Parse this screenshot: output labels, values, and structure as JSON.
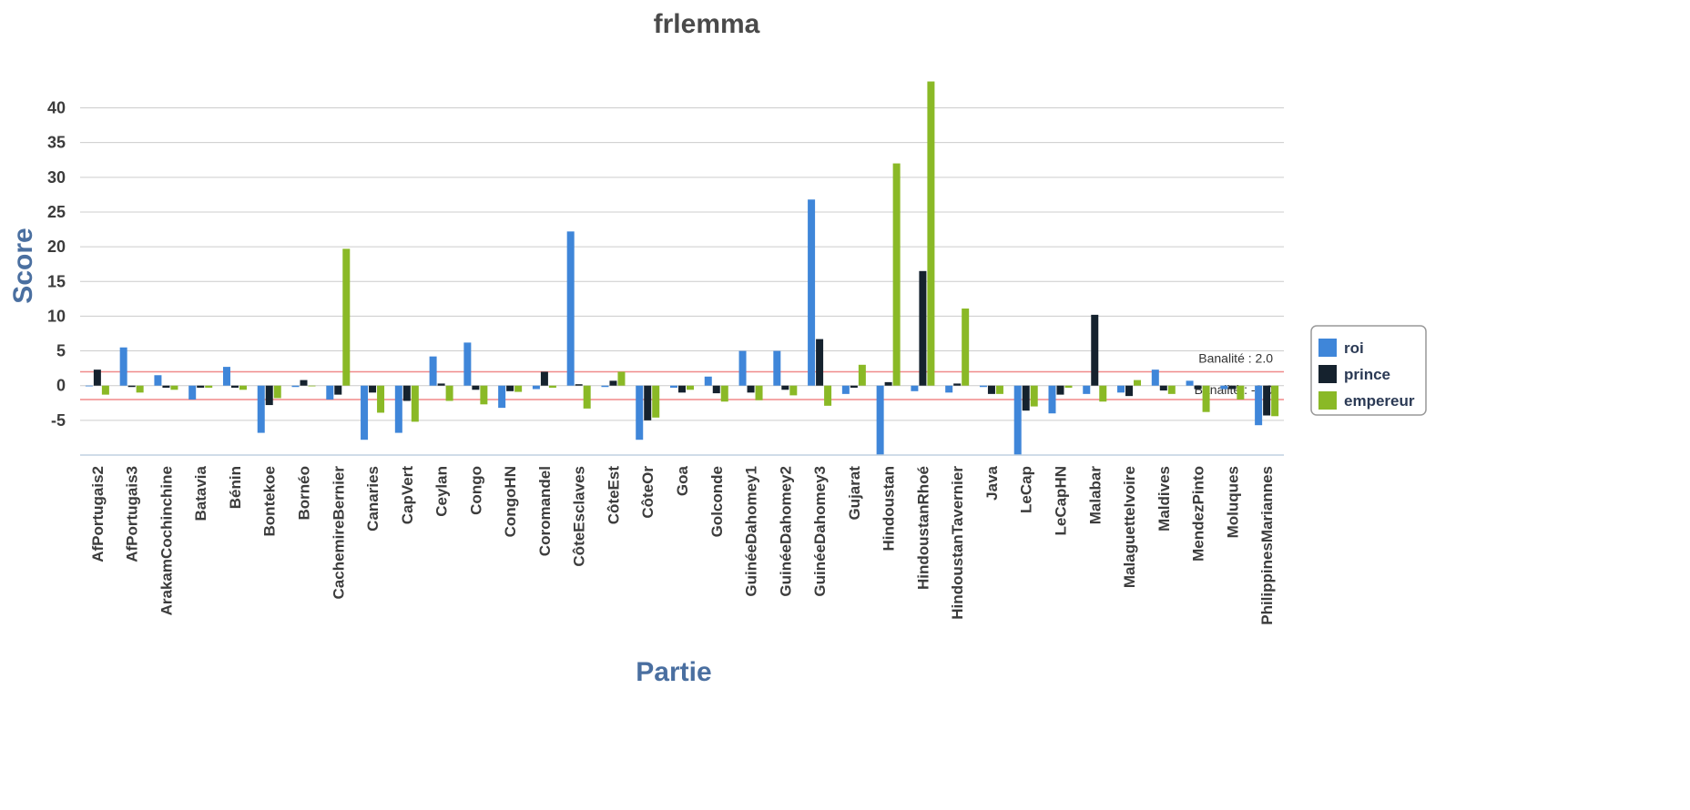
{
  "chart_data": {
    "type": "bar",
    "title": "frlemma",
    "xlabel": "Partie",
    "ylabel": "Score",
    "ylim": [
      -10,
      44
    ],
    "yticks": [
      -5,
      0,
      5,
      10,
      15,
      20,
      25,
      30,
      35,
      40
    ],
    "grid": true,
    "legend_position": "right",
    "categories": [
      "AfPortugais2",
      "AfPortugais3",
      "ArakamCochinchine",
      "Batavia",
      "Bénin",
      "Bontekoe",
      "Bornéo",
      "CachemireBernier",
      "Canaries",
      "CapVert",
      "Ceylan",
      "Congo",
      "CongoHN",
      "Coromandel",
      "CôteEsclaves",
      "CôteEst",
      "CôteOr",
      "Goa",
      "Golconde",
      "GuinéeDahomey1",
      "GuinéeDahomey2",
      "GuinéeDahomey3",
      "Gujarat",
      "Hindoustan",
      "HindoustanRhoé",
      "HindoustanTavernier",
      "Java",
      "LeCap",
      "LeCapHN",
      "Malabar",
      "MalaguetteIvoire",
      "Maldives",
      "MendezPinto",
      "Moluques",
      "PhilippinesMariannes"
    ],
    "series": [
      {
        "name": "roi",
        "color": "#3f86d9",
        "values": [
          0.0,
          5.5,
          1.5,
          -2.0,
          2.7,
          -6.8,
          -0.2,
          -2.0,
          -7.8,
          -6.8,
          4.2,
          6.2,
          -3.2,
          -0.5,
          22.2,
          -0.2,
          -7.8,
          -0.3,
          1.3,
          5.0,
          5.0,
          26.8,
          -1.2,
          -10.0,
          -0.8,
          -1.0,
          -0.2,
          -10.0,
          -4.0,
          -1.2,
          -1.0,
          2.3,
          0.7,
          -0.5,
          -5.7
        ]
      },
      {
        "name": "prince",
        "color": "#15222e",
        "values": [
          2.3,
          -0.2,
          -0.3,
          -0.3,
          -0.3,
          -2.8,
          0.8,
          -1.3,
          -1.0,
          -2.2,
          0.3,
          -0.6,
          -0.8,
          2.0,
          0.2,
          0.7,
          -5.0,
          -1.0,
          -1.1,
          -1.0,
          -0.6,
          6.7,
          -0.3,
          0.5,
          16.5,
          0.3,
          -1.2,
          -3.6,
          -1.3,
          10.2,
          -1.5,
          -0.7,
          -0.5,
          -0.5,
          -4.3
        ]
      },
      {
        "name": "empereur",
        "color": "#8ab926",
        "values": [
          -1.3,
          -1.0,
          -0.6,
          -0.3,
          -0.6,
          -1.8,
          0.0,
          19.7,
          -3.9,
          -5.2,
          -2.2,
          -2.7,
          -0.9,
          -0.3,
          -3.3,
          2.0,
          -4.6,
          -0.6,
          -2.3,
          -2.1,
          -1.4,
          -2.9,
          3.0,
          32.0,
          43.8,
          11.1,
          -1.2,
          -3.0,
          -0.3,
          -2.3,
          0.8,
          -1.2,
          -3.8,
          -2.0,
          -4.4
        ]
      }
    ],
    "bands": [
      {
        "value": 2.0,
        "label": "Banalité : 2.0",
        "color": "#f08a8a"
      },
      {
        "value": -2.0,
        "label": "Banalité : -2.0",
        "color": "#f08a8a"
      }
    ],
    "gridline_color": "#cccccc"
  }
}
